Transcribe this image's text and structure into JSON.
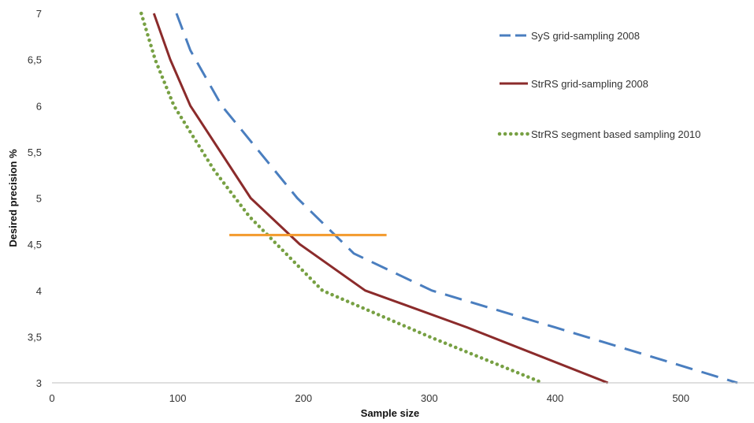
{
  "chart_data": {
    "type": "line",
    "title": "",
    "xlabel": "Sample size",
    "ylabel": "Desired precision %",
    "xlim": [
      0,
      550
    ],
    "ylim": [
      3,
      7
    ],
    "x_ticks": [
      "0",
      "100",
      "200",
      "300",
      "400",
      "500"
    ],
    "x_tick_values": [
      0,
      100,
      200,
      300,
      400,
      500
    ],
    "y_ticks": [
      "3",
      "3,5",
      "4",
      "4,5",
      "5",
      "5,5",
      "6",
      "6,5",
      "7"
    ],
    "y_tick_values": [
      3,
      3.5,
      4,
      4.5,
      5,
      5.5,
      6,
      6.5,
      7
    ],
    "grid": false,
    "legend_position": "top-right",
    "series": [
      {
        "name": "SyS grid-sampling 2008",
        "color": "#4a7ebf",
        "dash": "dashed",
        "points": [
          [
            99,
            7
          ],
          [
            110,
            6.6
          ],
          [
            135,
            6.0
          ],
          [
            195,
            5.0
          ],
          [
            240,
            4.4
          ],
          [
            302,
            4.0
          ],
          [
            400,
            3.6
          ],
          [
            545,
            3.0
          ]
        ]
      },
      {
        "name": "StrRS grid-sampling 2008",
        "color": "#8b2b2b",
        "dash": "solid",
        "points": [
          [
            81,
            7
          ],
          [
            94,
            6.5
          ],
          [
            110,
            6.0
          ],
          [
            158,
            5.0
          ],
          [
            197,
            4.5
          ],
          [
            249,
            4.0
          ],
          [
            330,
            3.6
          ],
          [
            442,
            3.0
          ]
        ]
      },
      {
        "name": "StrRS segment based sampling 2010",
        "color": "#77a043",
        "dash": "dotted",
        "points": [
          [
            71,
            7
          ],
          [
            82,
            6.5
          ],
          [
            97,
            6.0
          ],
          [
            129,
            5.3
          ],
          [
            157,
            4.8
          ],
          [
            215,
            4.0
          ],
          [
            300,
            3.5
          ],
          [
            390,
            3.0
          ]
        ]
      }
    ],
    "annotations": [
      {
        "kind": "horizontal-line",
        "y": 4.6,
        "x_from": 141,
        "x_to": 266,
        "color": "#f39a2c"
      }
    ]
  }
}
